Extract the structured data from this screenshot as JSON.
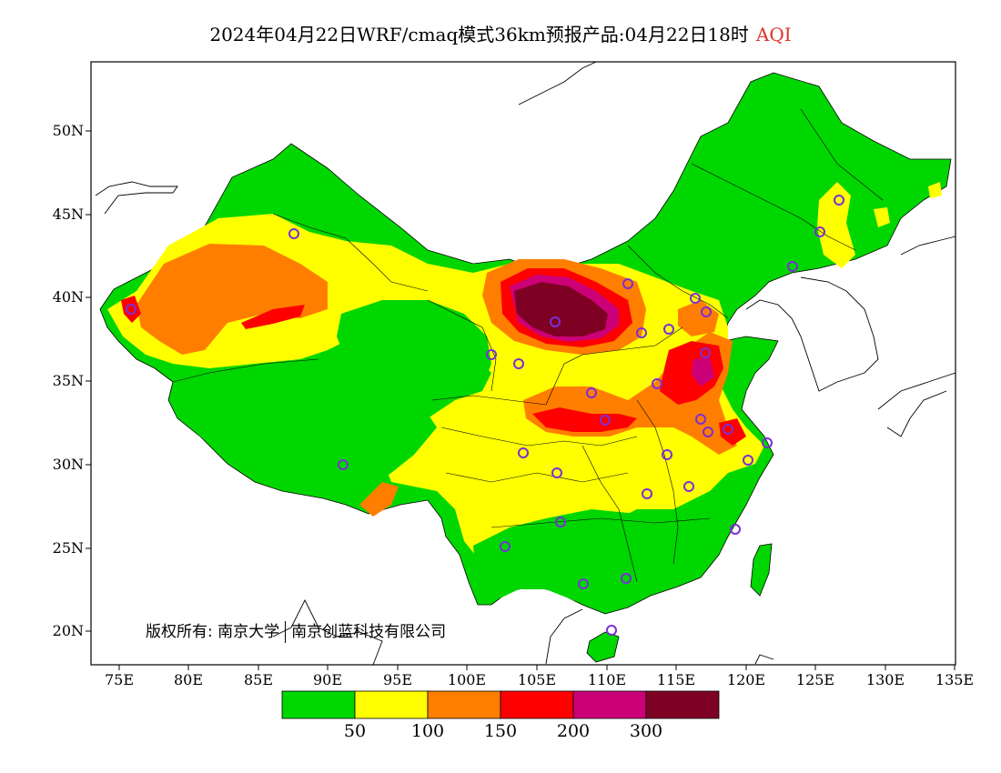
{
  "title": {
    "main": "2024年04月22日WRF/cmaq模式36km预报产品:04月22日18时",
    "variable": "AQI",
    "variable_color": "#e0302a"
  },
  "axes": {
    "y_labels": [
      "50N",
      "45N",
      "40N",
      "35N",
      "30N",
      "25N",
      "20N"
    ],
    "x_labels": [
      "75E",
      "80E",
      "85E",
      "90E",
      "95E",
      "100E",
      "105E",
      "110E",
      "115E",
      "120E",
      "125E",
      "130E",
      "135E"
    ]
  },
  "copyright": {
    "prefix": "版权所有:",
    "org1": "南京大学",
    "org2": "南京创蓝科技有限公司"
  },
  "colorbar": {
    "colors": [
      "#00d600",
      "#ffff00",
      "#ff7e00",
      "#ff0000",
      "#cc0077",
      "#7e0023"
    ],
    "labels": [
      "50",
      "100",
      "150",
      "200",
      "300"
    ]
  }
}
